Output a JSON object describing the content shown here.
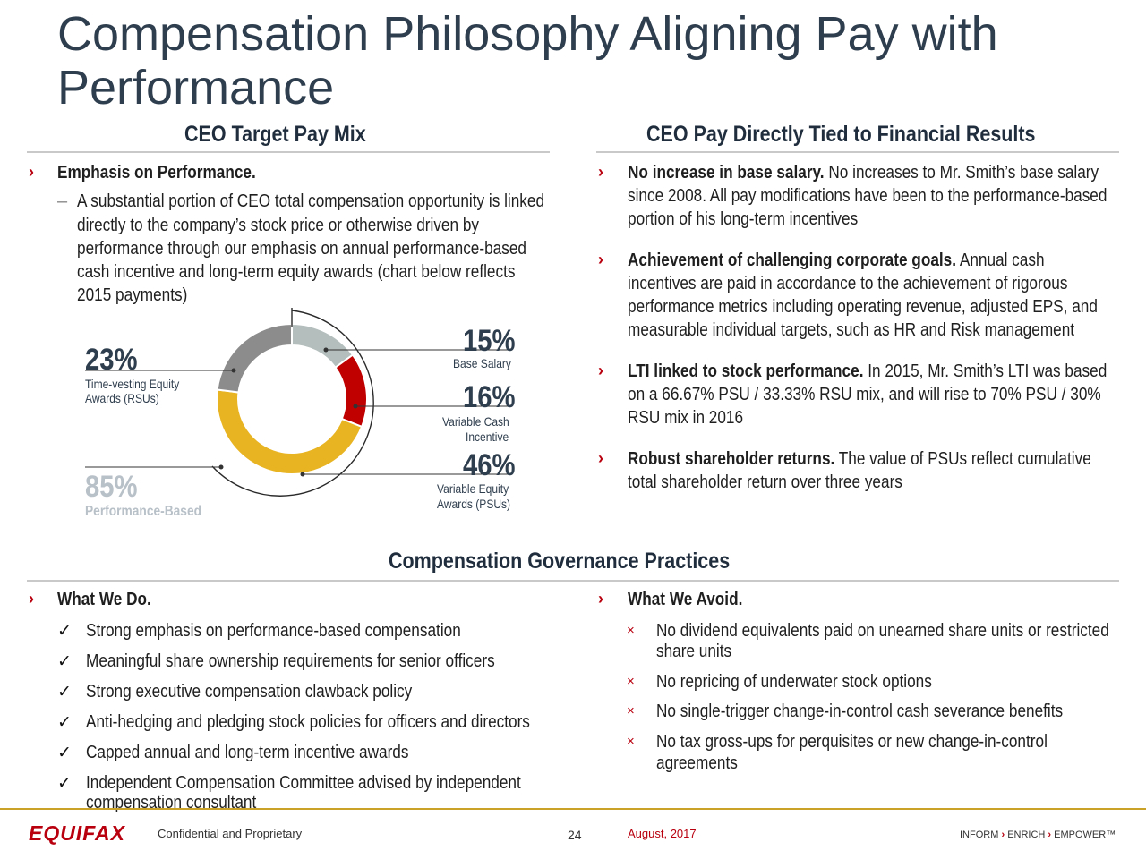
{
  "title": "Compensation Philosophy Aligning Pay with Performance",
  "sections": {
    "left_head": "CEO Target Pay Mix",
    "right_head": "CEO Pay Directly Tied to Financial Results",
    "bottom_head": "Compensation Governance Practices"
  },
  "emphasis": {
    "bullet": "Emphasis on Performance.",
    "dash": "–",
    "lines": [
      "A substantial portion of CEO total compensation opportunity is linked",
      "directly to the company’s stock price or otherwise driven by",
      "performance through our emphasis on annual performance-based",
      "cash incentive and long-term equity awards (chart below reflects",
      "2015 payments)"
    ]
  },
  "chart_data": {
    "type": "pie",
    "categories": [
      "Base Salary",
      "Variable Cash Incentive",
      "Variable Equity Awards (PSUs)",
      "Time-vesting Equity Awards (RSUs)"
    ],
    "values": [
      15,
      16,
      46,
      23
    ],
    "colors": [
      "#b4bfbd",
      "#c00000",
      "#e8b422",
      "#8c8c8c"
    ],
    "labels": [
      {
        "pct": "15%",
        "lines": [
          "Base Salary"
        ]
      },
      {
        "pct": "16%",
        "lines": [
          "Variable Cash",
          "Incentive"
        ]
      },
      {
        "pct": "46%",
        "lines": [
          "Variable Equity",
          "Awards (PSUs)"
        ]
      },
      {
        "pct": "23%",
        "lines": [
          "Time-vesting Equity",
          "Awards (RSUs)"
        ]
      }
    ],
    "performance_pct": "85%",
    "performance_label": "Performance-Based"
  },
  "right_bullets": [
    {
      "bold": "No increase in base salary.",
      "lines": [
        " No increases to Mr. Smith’s base salary",
        "since 2008. All pay modifications have been to the performance-based",
        "portion of his long-term incentives"
      ]
    },
    {
      "bold": "Achievement of challenging corporate goals.",
      "lines": " Annual cash|incentives are paid in accordance to the achievement of rigorous|performance metrics including operating revenue, adjusted EPS, and|measurable individual targets, such as HR and Risk management"
    },
    {
      "bold": "LTI linked to stock performance.",
      "lines": [
        " In 2015, Mr. Smith’s LTI was based",
        "on a 66.67% PSU / 33.33% RSU mix, and will rise to 70% PSU / 30%",
        "RSU mix in 2016"
      ]
    },
    {
      "bold": "Robust shareholder returns.",
      "lines": [
        "  The value of PSUs reflect cumulative",
        "total shareholder return over three years"
      ]
    }
  ],
  "do": {
    "head": "What We Do.",
    "check": "✓",
    "items": [
      "Strong emphasis on performance-based compensation",
      "Meaningful share ownership requirements for senior officers",
      "Strong executive compensation clawback policy",
      "Anti-hedging and pledging stock policies for officers and directors",
      "Capped annual and long-term incentive awards",
      "Independent Compensation Committee advised by independent",
      "compensation consultant"
    ]
  },
  "avoid": {
    "head": "What We Avoid.",
    "cross": "×",
    "items": [
      "No dividend equivalents paid on unearned share units or restricted",
      "share units",
      "No repricing of underwater stock options",
      "No single-trigger change-in-control cash severance benefits",
      "No tax gross-ups for perquisites or new change-in-control",
      "agreements"
    ]
  },
  "footer": {
    "logo": "EQUIFAX",
    "confidential": "Confidential and Proprietary",
    "page": "24",
    "date": "August, 2017",
    "tagline": [
      "INFORM",
      "ENRICH",
      "EMPOWER™"
    ]
  }
}
